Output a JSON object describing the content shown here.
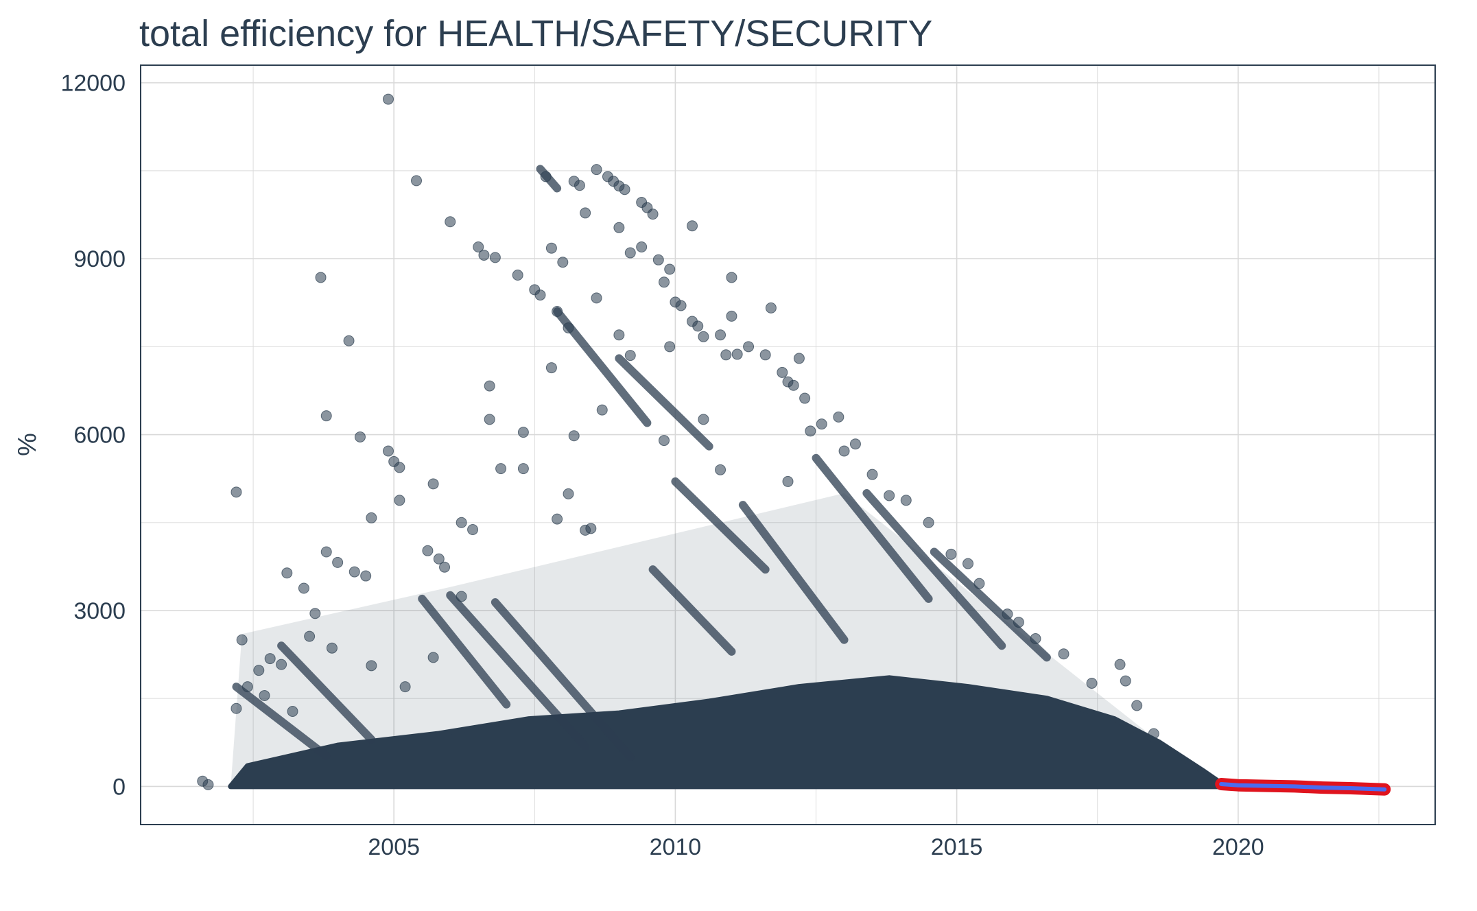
{
  "chart_data": {
    "type": "scatter",
    "title": "total efficiency for HEALTH/SAFETY/SECURITY",
    "xlabel": "",
    "ylabel": "%",
    "xlim": [
      2000.5,
      2023.5
    ],
    "ylim": [
      -650,
      12300
    ],
    "x_ticks": [
      2005,
      2010,
      2015,
      2020
    ],
    "y_ticks": [
      0,
      3000,
      6000,
      9000,
      12000
    ],
    "grid": true,
    "colors": {
      "points": "#2c3e50",
      "forecast_band": "#e0141e",
      "forecast_line": "#4a6cf0",
      "grid": "#d9d9d9",
      "panel_border": "#2c3e50",
      "text": "#2c3e50"
    },
    "series": [
      {
        "kind": "observed",
        "points": [
          [
            2001.6,
            90
          ],
          [
            2001.7,
            30
          ],
          [
            2002.2,
            5020
          ],
          [
            2002.3,
            2500
          ],
          [
            2002.2,
            1330
          ],
          [
            2002.4,
            1700
          ],
          [
            2002.6,
            1980
          ],
          [
            2002.8,
            2180
          ],
          [
            2003.0,
            2080
          ],
          [
            2003.1,
            3640
          ],
          [
            2003.4,
            3380
          ],
          [
            2003.5,
            2560
          ],
          [
            2003.6,
            2950
          ],
          [
            2003.7,
            8680
          ],
          [
            2003.8,
            6320
          ],
          [
            2003.8,
            4000
          ],
          [
            2003.9,
            2360
          ],
          [
            2004.0,
            3820
          ],
          [
            2004.2,
            7600
          ],
          [
            2004.3,
            3660
          ],
          [
            2004.4,
            5960
          ],
          [
            2004.5,
            3590
          ],
          [
            2004.6,
            2060
          ],
          [
            2004.6,
            4580
          ],
          [
            2004.9,
            5720
          ],
          [
            2004.9,
            11720
          ],
          [
            2005.0,
            5540
          ],
          [
            2005.1,
            5440
          ],
          [
            2005.1,
            4880
          ],
          [
            2005.4,
            10330
          ],
          [
            2005.6,
            4020
          ],
          [
            2005.7,
            5160
          ],
          [
            2005.8,
            3880
          ],
          [
            2005.9,
            3740
          ],
          [
            2005.7,
            2200
          ],
          [
            2006.0,
            9630
          ],
          [
            2006.2,
            4500
          ],
          [
            2006.5,
            9200
          ],
          [
            2006.6,
            9060
          ],
          [
            2006.7,
            6830
          ],
          [
            2006.7,
            6260
          ],
          [
            2006.8,
            9020
          ],
          [
            2006.9,
            5420
          ],
          [
            2007.2,
            8720
          ],
          [
            2007.3,
            6040
          ],
          [
            2007.3,
            5420
          ],
          [
            2007.5,
            8470
          ],
          [
            2007.6,
            8380
          ],
          [
            2007.7,
            10400
          ],
          [
            2007.8,
            9180
          ],
          [
            2007.8,
            7140
          ],
          [
            2007.9,
            8100
          ],
          [
            2008.0,
            8940
          ],
          [
            2008.1,
            7820
          ],
          [
            2008.1,
            4990
          ],
          [
            2008.2,
            10320
          ],
          [
            2008.2,
            5980
          ],
          [
            2008.3,
            10250
          ],
          [
            2008.4,
            9780
          ],
          [
            2008.4,
            4370
          ],
          [
            2008.6,
            8330
          ],
          [
            2008.7,
            6420
          ],
          [
            2008.6,
            10520
          ],
          [
            2008.8,
            10400
          ],
          [
            2008.9,
            10320
          ],
          [
            2009.0,
            10240
          ],
          [
            2009.1,
            10180
          ],
          [
            2009.0,
            7700
          ],
          [
            2009.2,
            7350
          ],
          [
            2009.0,
            9530
          ],
          [
            2009.2,
            9100
          ],
          [
            2009.4,
            9200
          ],
          [
            2009.4,
            9960
          ],
          [
            2009.5,
            9870
          ],
          [
            2009.6,
            9760
          ],
          [
            2009.7,
            8980
          ],
          [
            2009.8,
            8600
          ],
          [
            2009.9,
            8820
          ],
          [
            2009.9,
            7500
          ],
          [
            2010.0,
            8260
          ],
          [
            2010.1,
            8200
          ],
          [
            2010.3,
            9560
          ],
          [
            2010.3,
            7930
          ],
          [
            2010.4,
            7850
          ],
          [
            2010.5,
            7670
          ],
          [
            2010.5,
            6260
          ],
          [
            2010.8,
            7700
          ],
          [
            2010.9,
            7360
          ],
          [
            2011.0,
            8680
          ],
          [
            2011.0,
            8020
          ],
          [
            2011.1,
            7370
          ],
          [
            2011.3,
            7500
          ],
          [
            2011.6,
            7360
          ],
          [
            2011.7,
            8160
          ],
          [
            2011.9,
            7060
          ],
          [
            2012.0,
            6900
          ],
          [
            2012.1,
            6840
          ],
          [
            2012.2,
            7300
          ],
          [
            2012.3,
            6620
          ],
          [
            2012.4,
            6060
          ],
          [
            2012.6,
            6180
          ],
          [
            2012.9,
            6300
          ],
          [
            2013.0,
            5720
          ],
          [
            2013.2,
            5840
          ],
          [
            2013.5,
            5320
          ],
          [
            2013.8,
            4960
          ],
          [
            2014.1,
            4880
          ],
          [
            2014.5,
            4500
          ],
          [
            2014.9,
            3960
          ],
          [
            2015.4,
            3460
          ],
          [
            2015.9,
            2940
          ],
          [
            2016.4,
            2520
          ],
          [
            2016.9,
            2260
          ],
          [
            2017.4,
            1760
          ],
          [
            2017.9,
            2080
          ],
          [
            2018.0,
            1800
          ],
          [
            2018.2,
            1380
          ],
          [
            2018.5,
            900
          ],
          [
            2015.2,
            3800
          ],
          [
            2016.1,
            2800
          ],
          [
            2012.0,
            5200
          ],
          [
            2010.8,
            5400
          ],
          [
            2009.8,
            5900
          ],
          [
            2008.5,
            4400
          ],
          [
            2007.9,
            4560
          ],
          [
            2006.4,
            4380
          ],
          [
            2006.2,
            3240
          ],
          [
            2005.2,
            1700
          ],
          [
            2003.2,
            1280
          ],
          [
            2002.7,
            1550
          ]
        ],
        "streaks": [
          [
            [
              2002.2,
              1700
            ],
            [
              2003.8,
              520
            ]
          ],
          [
            [
              2006.0,
              3260
            ],
            [
              2008.4,
              680
            ]
          ],
          [
            [
              2006.8,
              3140
            ],
            [
              2009.2,
              500
            ]
          ],
          [
            [
              2007.6,
              10530
            ],
            [
              2007.9,
              10200
            ]
          ],
          [
            [
              2007.9,
              8100
            ],
            [
              2009.5,
              6200
            ]
          ],
          [
            [
              2009.0,
              7300
            ],
            [
              2010.6,
              5800
            ]
          ],
          [
            [
              2010.0,
              5200
            ],
            [
              2011.6,
              3700
            ]
          ],
          [
            [
              2011.2,
              4800
            ],
            [
              2013.0,
              2500
            ]
          ],
          [
            [
              2012.5,
              5600
            ],
            [
              2014.5,
              3200
            ]
          ],
          [
            [
              2013.4,
              5000
            ],
            [
              2015.8,
              2400
            ]
          ],
          [
            [
              2014.6,
              4000
            ],
            [
              2016.6,
              2200
            ]
          ],
          [
            [
              2005.5,
              3200
            ],
            [
              2007.0,
              1400
            ]
          ],
          [
            [
              2003.0,
              2400
            ],
            [
              2004.6,
              800
            ]
          ],
          [
            [
              2009.6,
              3700
            ],
            [
              2011.0,
              2300
            ]
          ]
        ],
        "dense_region": [
          [
            2002.1,
            0
          ],
          [
            2002.4,
            350
          ],
          [
            2004.0,
            700
          ],
          [
            2005.8,
            900
          ],
          [
            2007.4,
            1150
          ],
          [
            2009.0,
            1250
          ],
          [
            2010.6,
            1450
          ],
          [
            2012.2,
            1700
          ],
          [
            2013.8,
            1850
          ],
          [
            2015.2,
            1700
          ],
          [
            2016.6,
            1500
          ],
          [
            2017.8,
            1150
          ],
          [
            2018.6,
            750
          ],
          [
            2019.4,
            250
          ],
          [
            2019.7,
            50
          ],
          [
            2019.7,
            0
          ]
        ],
        "scattered_region": [
          [
            2002.1,
            0
          ],
          [
            2019.6,
            0
          ],
          [
            2013.0,
            5000
          ],
          [
            2006.0,
            3400
          ],
          [
            2002.3,
            2600
          ]
        ]
      },
      {
        "kind": "forecast",
        "x": [
          2019.7,
          2020.0,
          2020.5,
          2021.0,
          2021.5,
          2022.0,
          2022.6
        ],
        "y": [
          40,
          20,
          10,
          0,
          -20,
          -30,
          -50
        ]
      }
    ]
  }
}
